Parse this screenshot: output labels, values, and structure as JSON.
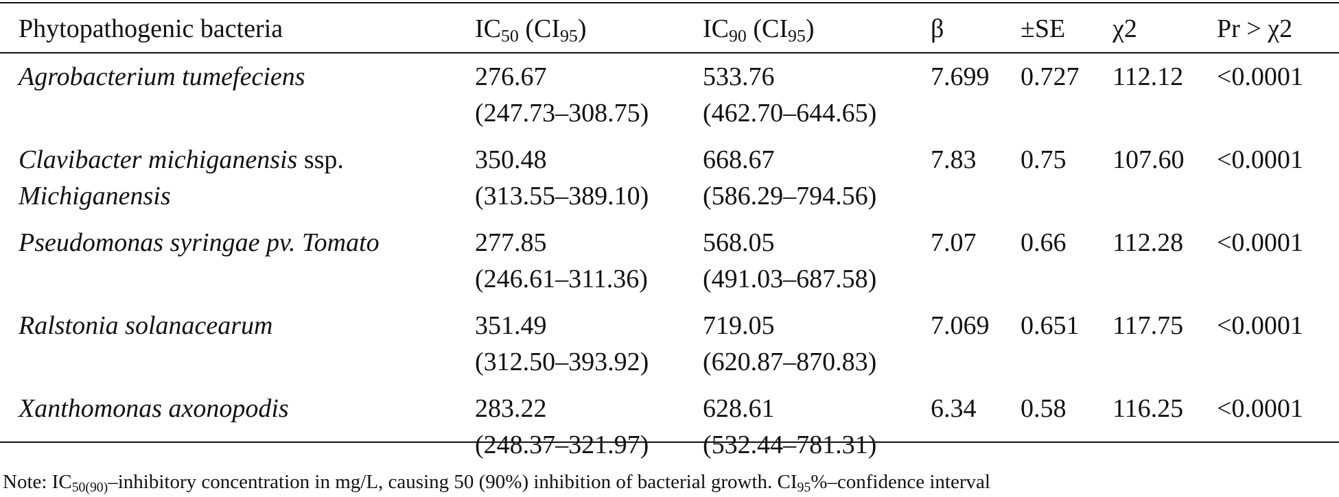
{
  "table": {
    "header": [
      [
        {
          "text": "Phytopathogenic bacteria"
        }
      ],
      [
        {
          "text": "IC"
        },
        {
          "text": "50",
          "sub": true
        },
        {
          "text": " (CI"
        },
        {
          "text": "95",
          "sub": true
        },
        {
          "text": ")"
        }
      ],
      [
        {
          "text": "IC"
        },
        {
          "text": "90",
          "sub": true
        },
        {
          "text": " (CI"
        },
        {
          "text": "95",
          "sub": true
        },
        {
          "text": ")"
        }
      ],
      [
        {
          "text": "β"
        }
      ],
      [
        {
          "text": "±SE"
        }
      ],
      [
        {
          "text": "χ2"
        }
      ],
      [
        {
          "text": "Pr > χ2"
        }
      ]
    ],
    "rows": [
      {
        "name": [
          [
            {
              "text": "Agrobacterium tumefeciens",
              "italic": true
            }
          ]
        ],
        "ic50": "276.67",
        "ic50_ci": "(247.73–308.75)",
        "ic90": "533.76",
        "ic90_ci": "(462.70–644.65)",
        "beta": "7.699",
        "se": "0.727",
        "chi2": "112.12",
        "pr": "<0.0001"
      },
      {
        "name": [
          [
            {
              "text": "Clavibacter michiganensis",
              "italic": true
            },
            {
              "text": " ssp."
            }
          ],
          [
            {
              "text": "Michiganensis",
              "italic": true
            }
          ]
        ],
        "ic50": "350.48",
        "ic50_ci": "(313.55–389.10)",
        "ic90": "668.67",
        "ic90_ci": "(586.29–794.56)",
        "beta": "7.83",
        "se": "0.75",
        "chi2": "107.60",
        "pr": "<0.0001"
      },
      {
        "name": [
          [
            {
              "text": "Pseudomonas syringae pv. Tomato",
              "italic": true
            }
          ]
        ],
        "ic50": "277.85",
        "ic50_ci": "(246.61–311.36)",
        "ic90": "568.05",
        "ic90_ci": "(491.03–687.58)",
        "beta": "7.07",
        "se": "0.66",
        "chi2": "112.28",
        "pr": "<0.0001"
      },
      {
        "name": [
          [
            {
              "text": "Ralstonia solanacearum",
              "italic": true
            }
          ]
        ],
        "ic50": "351.49",
        "ic50_ci": "(312.50–393.92)",
        "ic90": "719.05",
        "ic90_ci": "(620.87–870.83)",
        "beta": "7.069",
        "se": "0.651",
        "chi2": "117.75",
        "pr": "<0.0001"
      },
      {
        "name": [
          [
            {
              "text": "Xanthomonas axonopodis",
              "italic": true
            }
          ]
        ],
        "ic50": "283.22",
        "ic50_ci": "(248.37–321.97)",
        "ic90": "628.61",
        "ic90_ci": "(532.44–781.31)",
        "beta": "6.34",
        "se": "0.58",
        "chi2": "116.25",
        "pr": "<0.0001"
      }
    ],
    "note": [
      {
        "text": "Note: IC"
      },
      {
        "text": "50(90)",
        "sub": true
      },
      {
        "text": "–inhibitory concentration in mg/L, causing 50 (90%) inhibition of bacterial growth. CI"
      },
      {
        "text": "95",
        "sub": true
      },
      {
        "text": "%–confidence interval"
      }
    ]
  }
}
